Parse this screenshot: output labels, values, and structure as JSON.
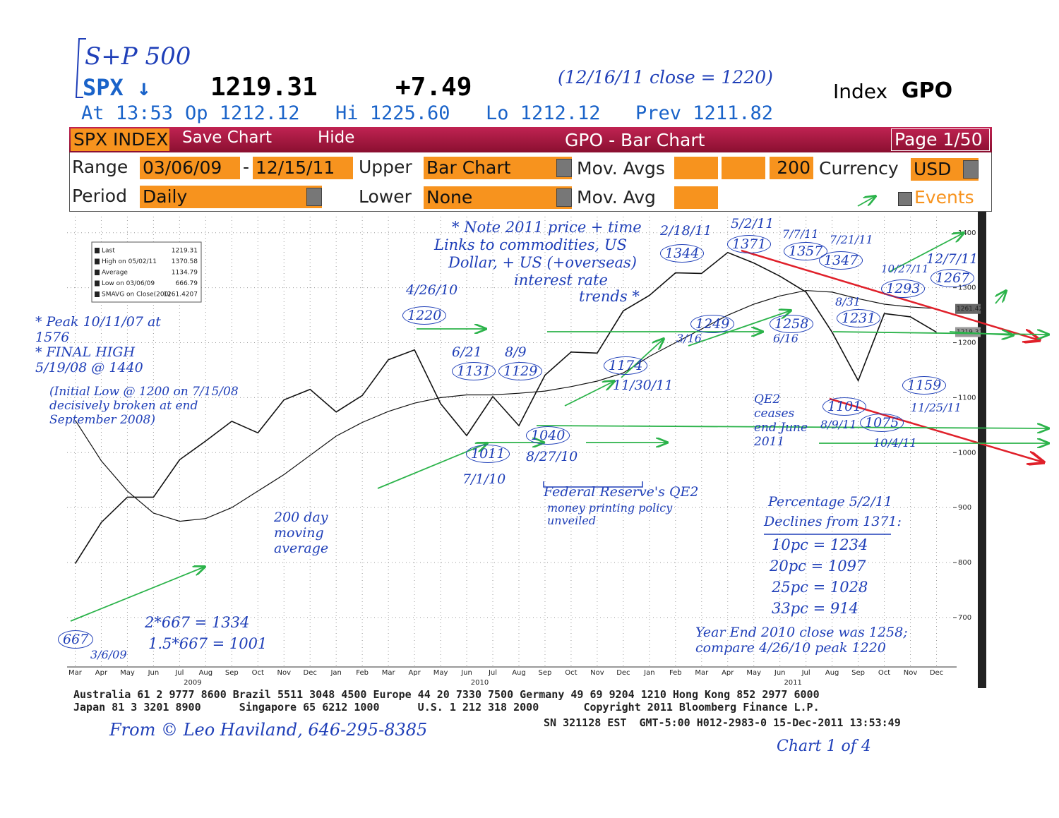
{
  "header": {
    "handwritten_title": "S+P 500",
    "ticker": "SPX ↓",
    "last": "1219.31",
    "change": "+7.49",
    "close_note": "(12/16/11 close = 1220)",
    "index": "Index",
    "function": "GPO",
    "quote_line": [
      "At 13:53",
      "Op 1212.12",
      "Hi 1225.60",
      "Lo 1212.12",
      "Prev 1211.82"
    ]
  },
  "toolbar": {
    "security": "SPX INDEX",
    "save": "Save Chart",
    "hide": "Hide",
    "title": "GPO - Bar Chart",
    "page": "Page 1/50",
    "range_label": "Range",
    "start": "03/06/09",
    "dash": "-",
    "end": "12/15/11",
    "upper_label": "Upper",
    "upper": "Bar Chart",
    "mov_avgs_label": "Mov. Avgs",
    "mov_avg_value": "200",
    "currency_label": "Currency",
    "currency": "USD",
    "period_label": "Period",
    "period": "Daily",
    "lower_label": "Lower",
    "lower": "None",
    "mov_avg_label": "Mov. Avg",
    "events": "Events"
  },
  "chart_data": {
    "type": "line",
    "categories": [
      "Mar",
      "Apr",
      "May",
      "Jun",
      "Jul",
      "Aug",
      "Sep",
      "Oct",
      "Nov",
      "Dec",
      "Jan",
      "Feb",
      "Mar",
      "Apr",
      "May",
      "Jun",
      "Jul",
      "Aug",
      "Sep",
      "Oct",
      "Nov",
      "Dec",
      "Jan",
      "Feb",
      "Mar",
      "Apr",
      "May",
      "Jun",
      "Jul",
      "Aug",
      "Sep",
      "Oct",
      "Nov",
      "Dec"
    ],
    "years": [
      "2009",
      "2010",
      "2011"
    ],
    "series": [
      {
        "name": "Last",
        "color": "#111111",
        "values": [
          798,
          873,
          919,
          919,
          987,
          1021,
          1057,
          1036,
          1096,
          1115,
          1074,
          1104,
          1169,
          1187,
          1089,
          1031,
          1102,
          1049,
          1141,
          1183,
          1181,
          1258,
          1286,
          1327,
          1326,
          1364,
          1345,
          1321,
          1292,
          1219,
          1131,
          1253,
          1247,
          1219
        ]
      },
      {
        "name": "SMAVG on Close(200)",
        "color": "#111111",
        "values": [
          1059,
          985,
          930,
          890,
          875,
          880,
          900,
          930,
          960,
          995,
          1030,
          1055,
          1075,
          1090,
          1100,
          1105,
          1105,
          1108,
          1112,
          1120,
          1130,
          1145,
          1175,
          1200,
          1225,
          1250,
          1270,
          1285,
          1295,
          1292,
          1280,
          1270,
          1265,
          1262
        ]
      }
    ],
    "ylim": [
      610,
      1410
    ],
    "yticks": [
      700,
      800,
      900,
      1000,
      1100,
      1200,
      1300,
      1400
    ],
    "grid": true,
    "axis_markers": [
      1261.42,
      1219.31
    ],
    "legend_box": [
      {
        "label": "Last",
        "value": 1219.31
      },
      {
        "label": "High on 05/02/11",
        "value": 1370.58
      },
      {
        "label": "Average",
        "value": 1134.79
      },
      {
        "label": "Low on 03/06/09",
        "value": 666.79
      },
      {
        "label": "SMAVG on Close(200)",
        "value": 1261.4207
      }
    ]
  },
  "annotations": [
    "* Peak 10/11/07 at 1576",
    "* FINAL HIGH 5/19/08 @ 1440",
    "(Initial Low @ 1200 on 7/15/08 decisively broken at end September 2008)",
    "4/26/10",
    "1220",
    "6/21",
    "1131",
    "8/9",
    "1129",
    "1011",
    "7/1/10",
    "1040",
    "8/27/10",
    "1174",
    "11/30/11",
    "* Note 2011 price + time",
    "Links to commodities, US",
    "Dollar, + US (+overseas)",
    "interest rate",
    "trends *",
    "2/18/11",
    "1344",
    "5/2/11",
    "1371",
    "7/7/11",
    "1357",
    "7/21/11",
    "1347",
    "1249",
    "3/16",
    "1258",
    "6/16",
    "8/31",
    "1231",
    "10/27/11",
    "1293",
    "12/7/11",
    "1267",
    "1159",
    "11/25/11",
    "QE2 ceases end June 2011",
    "1101",
    "8/9/11",
    "1075",
    "10/4/11",
    "Federal Reserve's QE2",
    "money printing policy",
    "unveiled",
    "200 day moving average",
    "Percentage 5/2/11",
    "Declines from 1371:",
    "10pc = 1234",
    "20pc = 1097",
    "25pc = 1028",
    "33pc = 914",
    "667",
    "3/6/09",
    "2*667 = 1334",
    "1.5*667 = 1001",
    "Year End 2010 close was 1258; compare 4/26/10 peak 1220",
    "From © Leo Haviland, 646-295-8385",
    "Chart 1 of 4"
  ],
  "footer": [
    "Australia 61 2 9777 8600 Brazil 5511 3048 4500 Europe 44 20 7330 7500 Germany 49 69 9204 1210 Hong Kong 852 2977 6000",
    "Japan 81 3 3201 8900      Singapore 65 6212 1000      U.S. 1 212 318 2000       Copyright 2011 Bloomberg Finance L.P.",
    "SN 321128 EST  GMT-5:00 H012-2983-0 15-Dec-2011 13:53:49"
  ]
}
